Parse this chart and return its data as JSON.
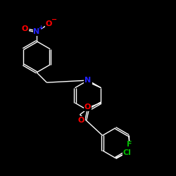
{
  "background_color": "#000000",
  "bond_color": "#ffffff",
  "atom_colors": {
    "N_nitro": "#2222ff",
    "N_pyridine": "#2222ff",
    "O": "#ff0000",
    "Cl": "#00bb00",
    "F": "#00bb00",
    "C": "#ffffff"
  },
  "lw": 1.0,
  "xlim": [
    0,
    10
  ],
  "ylim": [
    0,
    10
  ]
}
